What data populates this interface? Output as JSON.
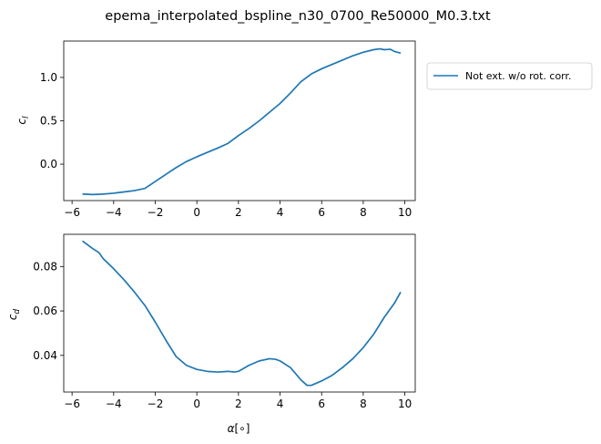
{
  "figure": {
    "title": "epema_interpolated_bspline_n30_0700_Re50000_M0.3.txt",
    "line_color": "#1f77b4"
  },
  "chart_data": [
    {
      "type": "line",
      "ylabel_base": "c",
      "ylabel_sub": "l",
      "xlim": [
        -6.4,
        10.5
      ],
      "ylim": [
        -0.42,
        1.42
      ],
      "xticks": [
        "−6",
        "−4",
        "−2",
        "0",
        "2",
        "4",
        "6",
        "8",
        "10"
      ],
      "xtick_values": [
        -6,
        -4,
        -2,
        0,
        2,
        4,
        6,
        8,
        10
      ],
      "yticks": [
        "0.0",
        "0.5",
        "1.0"
      ],
      "ytick_values": [
        0.0,
        0.5,
        1.0
      ],
      "legend": {
        "placement": "outside-right",
        "entries": [
          "Not ext. w/o rot. corr."
        ]
      },
      "series": [
        {
          "name": "Not ext. w/o rot. corr.",
          "x": [
            -5.5,
            -5.0,
            -4.5,
            -4.0,
            -3.5,
            -3.0,
            -2.5,
            -2.0,
            -1.5,
            -1.0,
            -0.5,
            0.0,
            0.5,
            1.0,
            1.5,
            2.0,
            2.5,
            3.0,
            3.5,
            4.0,
            4.5,
            5.0,
            5.5,
            6.0,
            6.5,
            7.0,
            7.5,
            8.0,
            8.5,
            8.8,
            9.0,
            9.3,
            9.5,
            9.8
          ],
          "y": [
            -0.345,
            -0.35,
            -0.345,
            -0.335,
            -0.32,
            -0.305,
            -0.28,
            -0.2,
            -0.12,
            -0.04,
            0.03,
            0.085,
            0.135,
            0.185,
            0.24,
            0.33,
            0.41,
            0.5,
            0.6,
            0.7,
            0.82,
            0.95,
            1.04,
            1.1,
            1.15,
            1.2,
            1.25,
            1.29,
            1.32,
            1.33,
            1.32,
            1.325,
            1.3,
            1.28
          ]
        }
      ]
    },
    {
      "type": "line",
      "xlabel_base": "α",
      "xlabel_rest": "[∘]",
      "ylabel_base": "c",
      "ylabel_sub": "d",
      "xlim": [
        -6.4,
        10.5
      ],
      "ylim": [
        0.0235,
        0.0945
      ],
      "xticks": [
        "−6",
        "−4",
        "−2",
        "0",
        "2",
        "4",
        "6",
        "8",
        "10"
      ],
      "xtick_values": [
        -6,
        -4,
        -2,
        0,
        2,
        4,
        6,
        8,
        10
      ],
      "yticks": [
        "0.04",
        "0.06",
        "0.08"
      ],
      "ytick_values": [
        0.04,
        0.06,
        0.08
      ],
      "series": [
        {
          "x": [
            -5.5,
            -5.0,
            -4.7,
            -4.5,
            -4.0,
            -3.5,
            -3.0,
            -2.5,
            -2.0,
            -1.5,
            -1.0,
            -0.5,
            0.0,
            0.5,
            1.0,
            1.5,
            1.8,
            2.0,
            2.5,
            3.0,
            3.5,
            3.8,
            4.0,
            4.5,
            5.0,
            5.3,
            5.5,
            6.0,
            6.5,
            7.0,
            7.5,
            8.0,
            8.5,
            9.0,
            9.5,
            9.8
          ],
          "y": [
            0.0915,
            0.088,
            0.0862,
            0.0835,
            0.079,
            0.074,
            0.0685,
            0.0625,
            0.055,
            0.047,
            0.0395,
            0.0355,
            0.0337,
            0.0328,
            0.0325,
            0.0328,
            0.0325,
            0.0328,
            0.0355,
            0.0375,
            0.0385,
            0.0382,
            0.0375,
            0.0345,
            0.029,
            0.0265,
            0.0265,
            0.0285,
            0.031,
            0.0345,
            0.0385,
            0.0435,
            0.0495,
            0.057,
            0.0635,
            0.0685
          ]
        }
      ]
    }
  ]
}
